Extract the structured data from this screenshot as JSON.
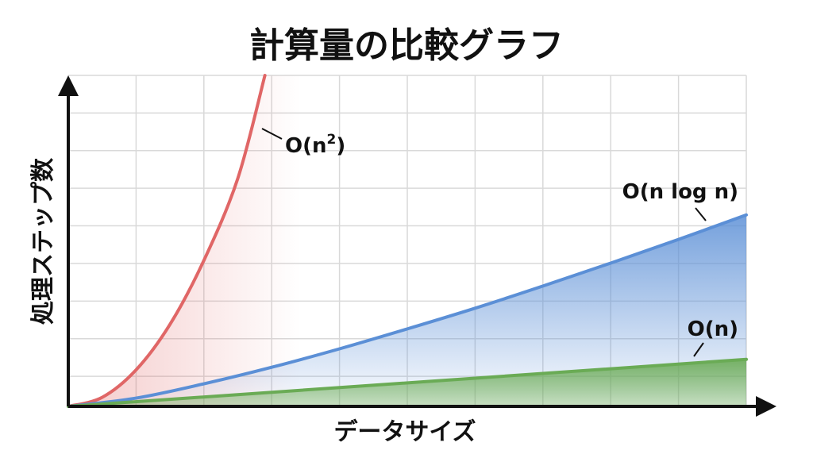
{
  "chart_data": {
    "type": "line",
    "title": "計算量の比較グラフ",
    "xlabel": "データサイズ",
    "ylabel": "処理ステップ数",
    "x_ticks_shown": false,
    "y_ticks_shown": false,
    "grid": true,
    "xlim": [
      0,
      10
    ],
    "ylim": [
      0,
      8.8
    ],
    "legend": "inline-labels",
    "series": [
      {
        "name": "O(n²)",
        "label_base": "O(n",
        "label_sup": "2",
        "label_close": ")",
        "color": "#e06666",
        "fill": true,
        "x": [
          0,
          0.5,
          1.0,
          1.5,
          2.0,
          2.5,
          2.9
        ],
        "y": [
          0,
          0.24,
          0.97,
          2.18,
          3.88,
          6.06,
          8.8
        ]
      },
      {
        "name": "O(n log n)",
        "label": "O(n log n)",
        "color": "#5b8fd6",
        "fill": true,
        "x": [
          0,
          1,
          2,
          3,
          4,
          5,
          6,
          7,
          8,
          9,
          10
        ],
        "y": [
          0,
          0.22,
          0.6,
          1.04,
          1.53,
          2.06,
          2.61,
          3.2,
          3.81,
          4.44,
          5.09
        ]
      },
      {
        "name": "O(n)",
        "label": "O(n)",
        "color": "#6aab55",
        "fill": true,
        "x": [
          0,
          10
        ],
        "y": [
          0,
          1.25
        ]
      }
    ]
  }
}
